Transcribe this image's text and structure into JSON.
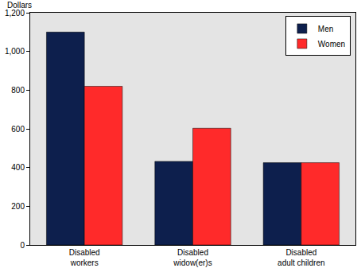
{
  "chart_data": {
    "type": "bar",
    "ylabel": "Dollars",
    "categories": [
      "Disabled workers",
      "Disabled widow(er)s",
      "Disabled adult children"
    ],
    "series": [
      {
        "name": "Men",
        "color": "#0d1f4d",
        "values": [
          1100,
          432,
          425
        ]
      },
      {
        "name": "Women",
        "color": "#ff2a2a",
        "values": [
          820,
          603,
          425
        ]
      }
    ],
    "ylim": [
      0,
      1200
    ],
    "yticks": [
      0,
      200,
      400,
      600,
      800,
      {
        "value": 1000,
        "label": "1,000"
      },
      {
        "value": 1200,
        "label": "1,200"
      }
    ],
    "grid": false,
    "legend": "upper right"
  }
}
